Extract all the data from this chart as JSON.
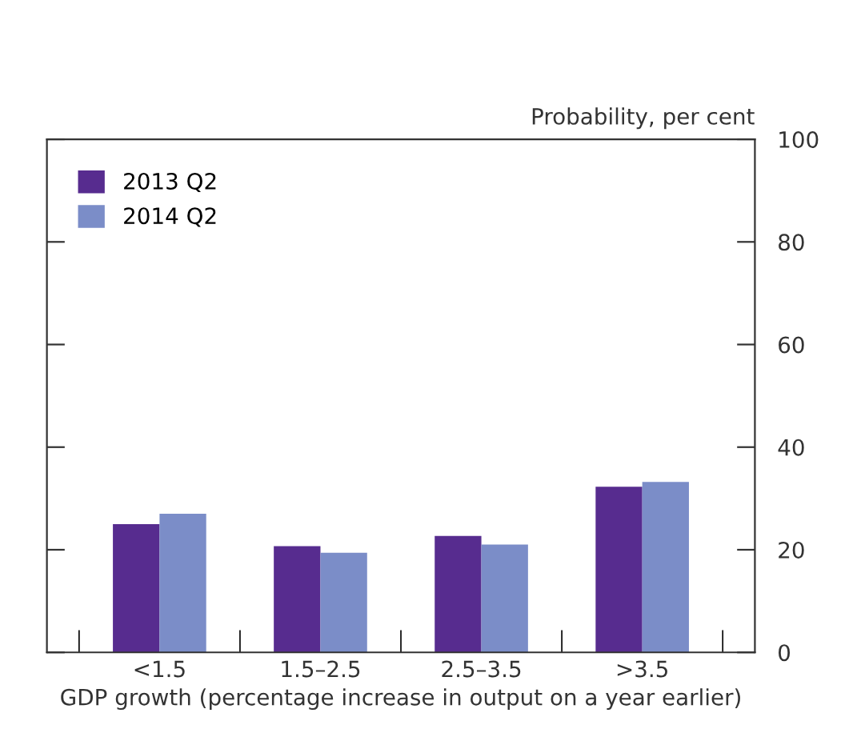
{
  "chart_data": {
    "type": "bar",
    "ylabel": "Probability, per cent",
    "xlabel": "GDP growth (percentage increase in output on a year earlier)",
    "categories": [
      "<1.5",
      "1.5–2.5",
      "2.5–3.5",
      ">3.5"
    ],
    "series": [
      {
        "name": "2013 Q2",
        "color": "#572c8f",
        "values": [
          25.0,
          20.7,
          22.7,
          32.3
        ]
      },
      {
        "name": "2014 Q2",
        "color": "#7b8dc8",
        "values": [
          27.0,
          19.4,
          21.0,
          33.2
        ]
      }
    ],
    "ylim": [
      0,
      100
    ],
    "yticks": [
      0,
      20,
      40,
      60,
      80,
      100
    ],
    "grid": false,
    "legend": "top left"
  }
}
